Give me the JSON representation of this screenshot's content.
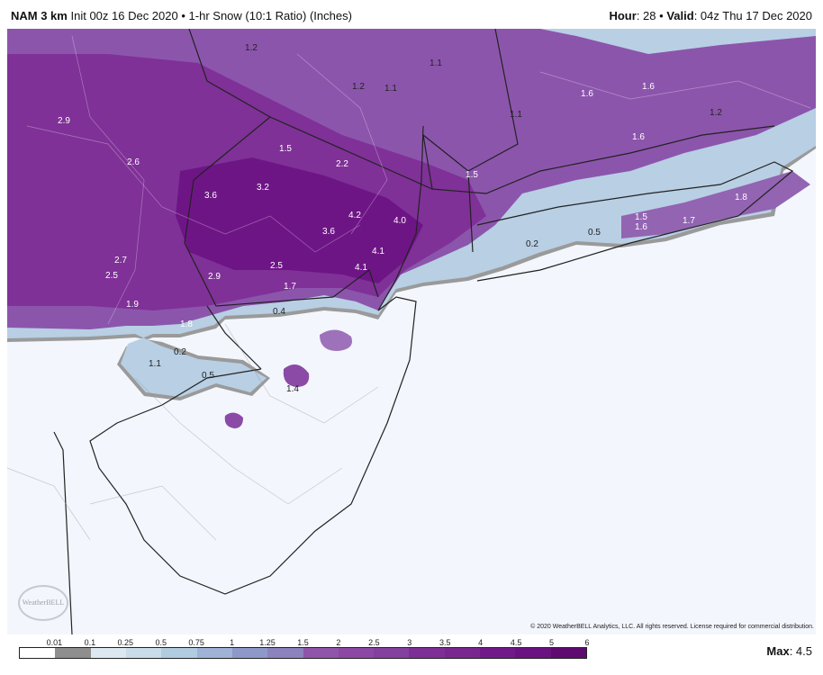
{
  "header": {
    "model": "NAM 3 km",
    "init": "Init 00z 16 Dec 2020",
    "separator": "•",
    "product": "1-hr Snow (10:1 Ratio) (Inches)",
    "hour_label": "Hour",
    "hour_value": "28",
    "valid_label": "Valid",
    "valid_value": "04z Thu 17 Dec 2020"
  },
  "map": {
    "labels": [
      "1.2",
      "1.1",
      "1.2",
      "1.1",
      "1.6",
      "1.6",
      "1.1",
      "1.2",
      "2.9",
      "1.6",
      "1.5",
      "2.6",
      "2.2",
      "1.5",
      "3.6",
      "3.2",
      "1.8",
      "4.2",
      "4.0",
      "1.5",
      "1.6",
      "1.7",
      "3.6",
      "0.2",
      "0.5",
      "4.1",
      "2.7",
      "2.5",
      "2.5",
      "2.9",
      "4.1",
      "1.7",
      "1.9",
      "0.4",
      "1.8",
      "0.2",
      "1.1",
      "0.5",
      "1.4"
    ],
    "logo_text": "WeatherBELL"
  },
  "copyright": "© 2020 WeatherBELL Analytics, LLC. All rights reserved. License required for commercial distribution.",
  "legend": {
    "ticks": [
      "0.01",
      "0.1",
      "0.25",
      "0.5",
      "0.75",
      "1",
      "1.25",
      "1.5",
      "2",
      "2.5",
      "3",
      "3.5",
      "4",
      "4.5",
      "5",
      "6"
    ],
    "colors": [
      "#ffffff",
      "#8e8e8e",
      "#dce8f0",
      "#c8dcea",
      "#b1cce0",
      "#9fb3d6",
      "#8e99c9",
      "#8b82be",
      "#8f55aa",
      "#8c48a4",
      "#84409e",
      "#7e2e97",
      "#7a2691",
      "#71198a",
      "#6a1282",
      "#5e0a70"
    ],
    "max_label": "Max",
    "max_value": "4.5"
  }
}
